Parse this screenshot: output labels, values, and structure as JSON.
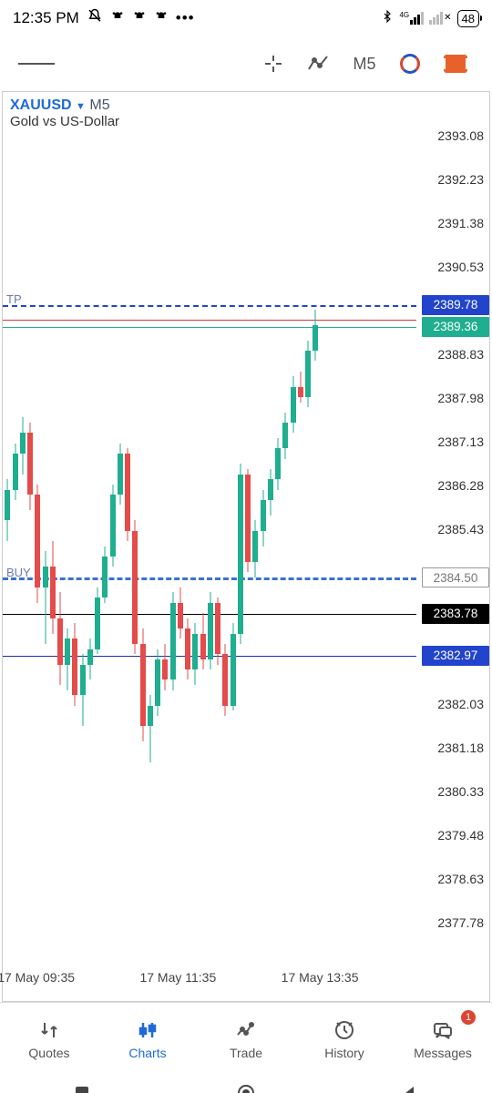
{
  "status": {
    "time": "12:35 PM",
    "battery": "48",
    "net": "4G"
  },
  "toolbar": {
    "timeframe": "M5"
  },
  "chart": {
    "symbol": "XAUUSD",
    "tf": "M5",
    "desc": "Gold vs US-Dollar",
    "y_min": 2376.93,
    "y_max": 2393.93,
    "y_ticks": [
      2393.08,
      2392.23,
      2391.38,
      2390.53,
      2388.83,
      2387.98,
      2387.13,
      2386.28,
      2385.43,
      2383.78,
      2382.03,
      2381.18,
      2380.33,
      2379.48,
      2378.63,
      2377.78
    ],
    "price_labels": [
      {
        "v": 2389.78,
        "bg": "#2244cc",
        "fg": "#ffffff"
      },
      {
        "v": 2389.36,
        "bg": "#1fae8f",
        "fg": "#ffffff"
      },
      {
        "v": 2384.5,
        "bg": "#ffffff",
        "fg": "#777777",
        "border": "#999999"
      },
      {
        "v": 2383.78,
        "bg": "#000000",
        "fg": "#ffffff"
      },
      {
        "v": 2382.97,
        "bg": "#2244cc",
        "fg": "#ffffff"
      }
    ],
    "hlines": [
      {
        "v": 2389.78,
        "color": "#2244cc",
        "style": "dashed",
        "label": "TP"
      },
      {
        "v": 2389.5,
        "color": "#d13b3b",
        "style": "solid"
      },
      {
        "v": 2389.36,
        "color": "#1fae8f",
        "style": "solid"
      },
      {
        "v": 2384.5,
        "color": "#3a6fd8",
        "style": "dashed",
        "label": "BUY 1",
        "thick": true
      },
      {
        "v": 2383.78,
        "color": "#000000",
        "style": "solid"
      },
      {
        "v": 2382.97,
        "color": "#1a2fb0",
        "style": "solid"
      }
    ],
    "x_ticks": [
      {
        "t": 0.08,
        "label": "17 May 09:35"
      },
      {
        "t": 0.42,
        "label": "17 May 11:35"
      },
      {
        "t": 0.76,
        "label": "17 May 13:35"
      }
    ],
    "colors": {
      "up": "#1fae8f",
      "down": "#e44b4b"
    },
    "candles": [
      {
        "t": 0.005,
        "o": 2385.6,
        "h": 2386.4,
        "l": 2385.2,
        "c": 2386.2
      },
      {
        "t": 0.023,
        "o": 2386.2,
        "h": 2387.1,
        "l": 2386.0,
        "c": 2386.9
      },
      {
        "t": 0.041,
        "o": 2386.9,
        "h": 2387.6,
        "l": 2386.5,
        "c": 2387.3
      },
      {
        "t": 0.059,
        "o": 2387.3,
        "h": 2387.5,
        "l": 2385.8,
        "c": 2386.1
      },
      {
        "t": 0.077,
        "o": 2386.1,
        "h": 2386.3,
        "l": 2384.0,
        "c": 2384.3
      },
      {
        "t": 0.095,
        "o": 2384.3,
        "h": 2385.0,
        "l": 2383.2,
        "c": 2384.7
      },
      {
        "t": 0.113,
        "o": 2384.7,
        "h": 2385.2,
        "l": 2383.4,
        "c": 2383.7
      },
      {
        "t": 0.131,
        "o": 2383.7,
        "h": 2384.2,
        "l": 2382.4,
        "c": 2382.8
      },
      {
        "t": 0.149,
        "o": 2382.8,
        "h": 2383.5,
        "l": 2382.3,
        "c": 2383.3
      },
      {
        "t": 0.167,
        "o": 2383.3,
        "h": 2383.6,
        "l": 2382.0,
        "c": 2382.2
      },
      {
        "t": 0.185,
        "o": 2382.2,
        "h": 2383.0,
        "l": 2381.6,
        "c": 2382.8
      },
      {
        "t": 0.203,
        "o": 2382.8,
        "h": 2383.3,
        "l": 2382.5,
        "c": 2383.1
      },
      {
        "t": 0.221,
        "o": 2383.1,
        "h": 2384.3,
        "l": 2383.0,
        "c": 2384.1
      },
      {
        "t": 0.239,
        "o": 2384.1,
        "h": 2385.1,
        "l": 2384.0,
        "c": 2384.9
      },
      {
        "t": 0.257,
        "o": 2384.9,
        "h": 2386.3,
        "l": 2384.7,
        "c": 2386.1
      },
      {
        "t": 0.275,
        "o": 2386.1,
        "h": 2387.1,
        "l": 2385.9,
        "c": 2386.9
      },
      {
        "t": 0.293,
        "o": 2386.9,
        "h": 2387.0,
        "l": 2385.2,
        "c": 2385.4
      },
      {
        "t": 0.311,
        "o": 2385.4,
        "h": 2385.6,
        "l": 2383.0,
        "c": 2383.2
      },
      {
        "t": 0.329,
        "o": 2383.2,
        "h": 2383.5,
        "l": 2381.3,
        "c": 2381.6
      },
      {
        "t": 0.347,
        "o": 2381.6,
        "h": 2382.2,
        "l": 2380.9,
        "c": 2382.0
      },
      {
        "t": 0.365,
        "o": 2382.0,
        "h": 2383.1,
        "l": 2381.8,
        "c": 2382.9
      },
      {
        "t": 0.383,
        "o": 2382.9,
        "h": 2383.2,
        "l": 2382.3,
        "c": 2382.5
      },
      {
        "t": 0.401,
        "o": 2382.5,
        "h": 2384.2,
        "l": 2382.3,
        "c": 2384.0
      },
      {
        "t": 0.419,
        "o": 2384.0,
        "h": 2384.3,
        "l": 2383.3,
        "c": 2383.5
      },
      {
        "t": 0.437,
        "o": 2383.5,
        "h": 2383.7,
        "l": 2382.5,
        "c": 2382.7
      },
      {
        "t": 0.455,
        "o": 2382.7,
        "h": 2383.6,
        "l": 2382.4,
        "c": 2383.4
      },
      {
        "t": 0.473,
        "o": 2383.4,
        "h": 2383.8,
        "l": 2382.7,
        "c": 2382.9
      },
      {
        "t": 0.491,
        "o": 2382.9,
        "h": 2384.2,
        "l": 2382.7,
        "c": 2384.0
      },
      {
        "t": 0.509,
        "o": 2384.0,
        "h": 2384.1,
        "l": 2382.8,
        "c": 2383.0
      },
      {
        "t": 0.527,
        "o": 2383.0,
        "h": 2383.2,
        "l": 2381.8,
        "c": 2382.0
      },
      {
        "t": 0.545,
        "o": 2382.0,
        "h": 2383.6,
        "l": 2381.9,
        "c": 2383.4
      },
      {
        "t": 0.563,
        "o": 2383.4,
        "h": 2386.7,
        "l": 2383.2,
        "c": 2386.5
      },
      {
        "t": 0.581,
        "o": 2386.5,
        "h": 2386.6,
        "l": 2384.6,
        "c": 2384.8
      },
      {
        "t": 0.599,
        "o": 2384.8,
        "h": 2385.6,
        "l": 2384.5,
        "c": 2385.4
      },
      {
        "t": 0.617,
        "o": 2385.4,
        "h": 2386.2,
        "l": 2385.1,
        "c": 2386.0
      },
      {
        "t": 0.635,
        "o": 2386.0,
        "h": 2386.6,
        "l": 2385.7,
        "c": 2386.4
      },
      {
        "t": 0.653,
        "o": 2386.4,
        "h": 2387.2,
        "l": 2386.2,
        "c": 2387.0
      },
      {
        "t": 0.671,
        "o": 2387.0,
        "h": 2387.7,
        "l": 2386.8,
        "c": 2387.5
      },
      {
        "t": 0.689,
        "o": 2387.5,
        "h": 2388.4,
        "l": 2387.3,
        "c": 2388.2
      },
      {
        "t": 0.707,
        "o": 2388.2,
        "h": 2388.5,
        "l": 2387.9,
        "c": 2388.0
      },
      {
        "t": 0.725,
        "o": 2388.0,
        "h": 2389.1,
        "l": 2387.8,
        "c": 2388.9
      },
      {
        "t": 0.743,
        "o": 2388.9,
        "h": 2389.7,
        "l": 2388.7,
        "c": 2389.4
      }
    ]
  },
  "nav": {
    "items": [
      {
        "label": "Quotes"
      },
      {
        "label": "Charts"
      },
      {
        "label": "Trade"
      },
      {
        "label": "History"
      },
      {
        "label": "Messages",
        "badge": "1"
      }
    ],
    "active": 1
  }
}
